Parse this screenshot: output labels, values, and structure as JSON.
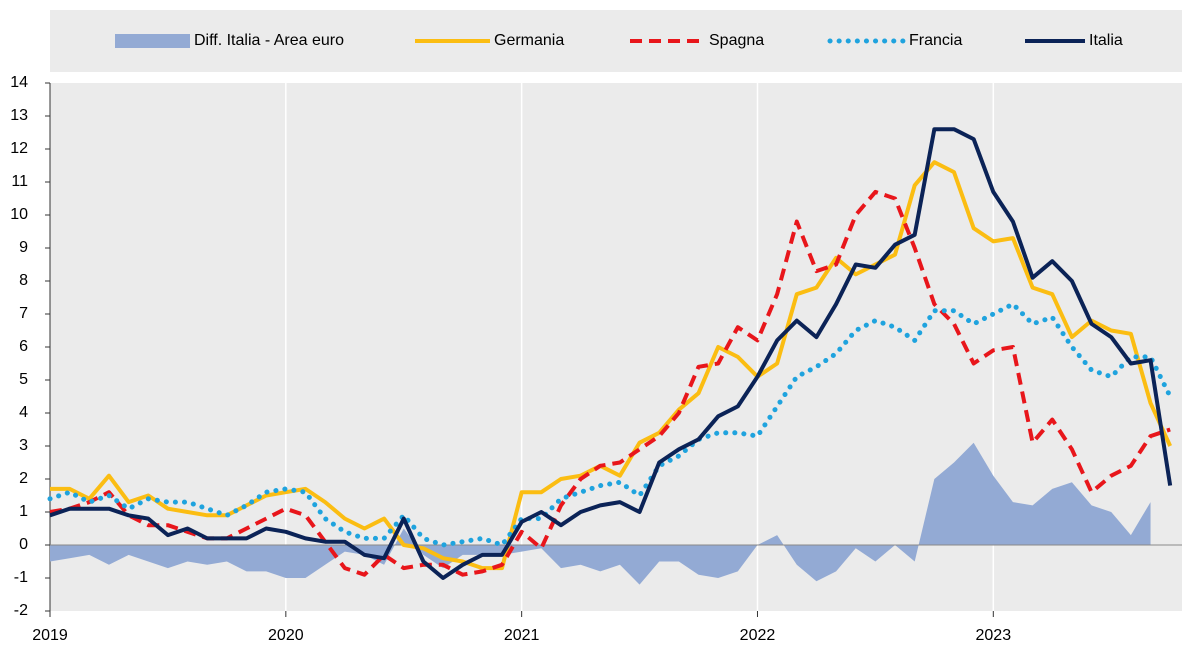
{
  "chart_data": {
    "type": "line",
    "categories": [
      "2019",
      null,
      null,
      null,
      null,
      null,
      null,
      null,
      null,
      null,
      null,
      null,
      "2020",
      null,
      null,
      null,
      null,
      null,
      null,
      null,
      null,
      null,
      null,
      null,
      "2021",
      null,
      null,
      null,
      null,
      null,
      null,
      null,
      null,
      null,
      null,
      null,
      "2022",
      null,
      null,
      null,
      null,
      null,
      null,
      null,
      null,
      null,
      null,
      null,
      "2023",
      null,
      null,
      null,
      null,
      null,
      null,
      null,
      null,
      null
    ],
    "ylim": [
      -2,
      14
    ],
    "yticks": [
      -2,
      -1,
      0,
      1,
      2,
      3,
      4,
      5,
      6,
      7,
      8,
      9,
      10,
      11,
      12,
      13,
      14
    ],
    "grid": true,
    "legend": "top",
    "series": [
      {
        "name": "Diff. Italia - Area euro",
        "color": "#93aad4",
        "style": "area",
        "values": [
          -0.5,
          -0.4,
          -0.3,
          -0.6,
          -0.3,
          -0.5,
          -0.7,
          -0.5,
          -0.6,
          -0.5,
          -0.8,
          -0.8,
          -1.0,
          -1.0,
          -0.6,
          -0.2,
          -0.3,
          -0.6,
          0.5,
          -0.3,
          -0.7,
          -0.3,
          -0.3,
          -0.3,
          -0.2,
          -0.1,
          -0.7,
          -0.6,
          -0.8,
          -0.6,
          -1.2,
          -0.5,
          -0.5,
          -0.9,
          -1.0,
          -0.8,
          0.0,
          0.3,
          -0.6,
          -1.1,
          -0.8,
          -0.1,
          -0.5,
          0.0,
          -0.5,
          2.0,
          2.5,
          3.1,
          2.1,
          1.3,
          1.2,
          1.7,
          1.9,
          1.2,
          1.0,
          0.3,
          1.3,
          null
        ]
      },
      {
        "name": "Germania",
        "color": "#fbbd12",
        "style": "solid",
        "values": [
          1.7,
          1.7,
          1.4,
          2.1,
          1.3,
          1.5,
          1.1,
          1.0,
          0.9,
          0.9,
          1.2,
          1.5,
          1.6,
          1.7,
          1.3,
          0.8,
          0.5,
          0.8,
          0.0,
          -0.1,
          -0.4,
          -0.5,
          -0.7,
          -0.7,
          1.6,
          1.6,
          2.0,
          2.1,
          2.4,
          2.1,
          3.1,
          3.4,
          4.1,
          4.6,
          6.0,
          5.7,
          5.1,
          5.5,
          7.6,
          7.8,
          8.7,
          8.2,
          8.5,
          8.8,
          10.9,
          11.6,
          11.3,
          9.6,
          9.2,
          9.3,
          7.8,
          7.6,
          6.3,
          6.8,
          6.5,
          6.4,
          4.3,
          3.0
        ]
      },
      {
        "name": "Spagna",
        "color": "#e8161b",
        "style": "dashed",
        "values": [
          1.0,
          1.1,
          1.3,
          1.6,
          0.9,
          0.6,
          0.6,
          0.4,
          0.2,
          0.2,
          0.5,
          0.8,
          1.1,
          0.9,
          0.1,
          -0.7,
          -0.9,
          -0.3,
          -0.7,
          -0.6,
          -0.6,
          -0.9,
          -0.8,
          -0.6,
          0.4,
          -0.1,
          1.2,
          2.0,
          2.4,
          2.5,
          2.9,
          3.3,
          4.0,
          5.4,
          5.5,
          6.6,
          6.2,
          7.6,
          9.8,
          8.3,
          8.5,
          10.0,
          10.7,
          10.5,
          9.0,
          7.3,
          6.7,
          5.5,
          5.9,
          6.0,
          3.1,
          3.8,
          2.9,
          1.6,
          2.1,
          2.4,
          3.3,
          3.5
        ]
      },
      {
        "name": "Francia",
        "color": "#1fa3de",
        "style": "dotted",
        "values": [
          1.4,
          1.6,
          1.3,
          1.5,
          1.1,
          1.4,
          1.3,
          1.3,
          1.1,
          0.9,
          1.2,
          1.6,
          1.7,
          1.6,
          0.8,
          0.4,
          0.2,
          0.2,
          0.9,
          0.2,
          0.0,
          0.1,
          0.2,
          0.0,
          0.8,
          0.8,
          1.4,
          1.6,
          1.8,
          1.9,
          1.5,
          2.4,
          2.7,
          3.2,
          3.4,
          3.4,
          3.3,
          4.2,
          5.1,
          5.4,
          5.8,
          6.5,
          6.8,
          6.6,
          6.2,
          7.1,
          7.1,
          6.7,
          7.0,
          7.3,
          6.7,
          6.9,
          6.0,
          5.3,
          5.1,
          5.7,
          5.7,
          4.5
        ]
      },
      {
        "name": "Italia",
        "color": "#0b2357",
        "style": "solid",
        "values": [
          0.9,
          1.1,
          1.1,
          1.1,
          0.9,
          0.8,
          0.3,
          0.5,
          0.2,
          0.2,
          0.2,
          0.5,
          0.4,
          0.2,
          0.1,
          0.1,
          -0.3,
          -0.4,
          0.8,
          -0.5,
          -1.0,
          -0.6,
          -0.3,
          -0.3,
          0.7,
          1.0,
          0.6,
          1.0,
          1.2,
          1.3,
          1.0,
          2.5,
          2.9,
          3.2,
          3.9,
          4.2,
          5.1,
          6.2,
          6.8,
          6.3,
          7.3,
          8.5,
          8.4,
          9.1,
          9.4,
          12.6,
          12.6,
          12.3,
          10.7,
          9.8,
          8.1,
          8.6,
          8.0,
          6.7,
          6.3,
          5.5,
          5.6,
          1.8
        ]
      }
    ]
  }
}
